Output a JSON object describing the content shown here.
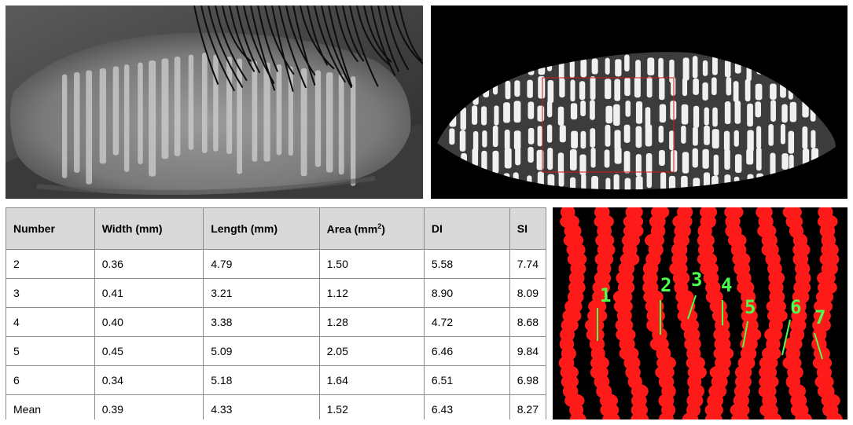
{
  "table": {
    "headers": [
      "Number",
      "Width (mm)",
      "Length (mm)",
      "Area (mm",
      "2",
      ")",
      "DI",
      "SI"
    ],
    "rows": [
      [
        "2",
        "0.36",
        "4.79",
        "1.50",
        "5.58",
        "7.74"
      ],
      [
        "3",
        "0.41",
        "3.21",
        "1.12",
        "8.90",
        "8.09"
      ],
      [
        "4",
        "0.40",
        "3.38",
        "1.28",
        "4.72",
        "8.68"
      ],
      [
        "5",
        "0.45",
        "5.09",
        "2.05",
        "6.46",
        "9.84"
      ],
      [
        "6",
        "0.34",
        "5.18",
        "1.64",
        "6.51",
        "6.98"
      ],
      [
        "Mean",
        "0.39",
        "4.33",
        "1.52",
        "6.43",
        "8.27"
      ]
    ]
  },
  "segmentation": {
    "gland_labels": [
      "1",
      "2",
      "3",
      "4",
      "5",
      "6",
      "7"
    ],
    "colors": {
      "glands": "#ff1a1a",
      "background": "#000000",
      "labels": "#4cff4c",
      "roi_box": "#d01818"
    }
  }
}
